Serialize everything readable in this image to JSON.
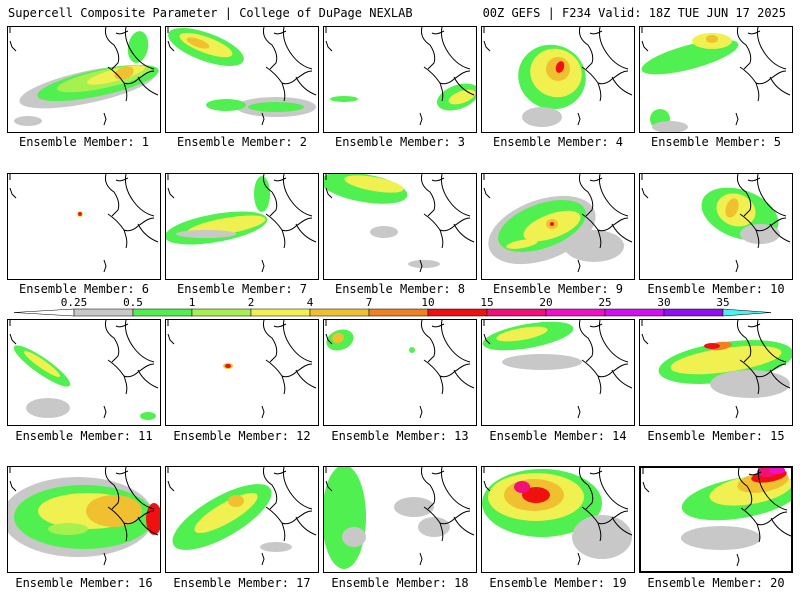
{
  "header": {
    "left": "Supercell Composite Parameter | College of DuPage NEXLAB",
    "right": "00Z GEFS | F234 Valid: 18Z TUE JUN 17 2025"
  },
  "legend": {
    "levels": [
      "0.25",
      "0.5",
      "1",
      "2",
      "4",
      "7",
      "10",
      "15",
      "20",
      "25",
      "30",
      "35"
    ],
    "colors": [
      "#c8c8c8",
      "#50f050",
      "#a6f050",
      "#f0f050",
      "#f0c030",
      "#f08020",
      "#f01010",
      "#f01078",
      "#f010c8",
      "#d010f0",
      "#9010f0",
      "#b070e8",
      "#50f0f0"
    ]
  },
  "members": [
    {
      "label": "Ensemble Member: 1"
    },
    {
      "label": "Ensemble Member: 2"
    },
    {
      "label": "Ensemble Member: 3"
    },
    {
      "label": "Ensemble Member: 4"
    },
    {
      "label": "Ensemble Member: 5"
    },
    {
      "label": "Ensemble Member: 6"
    },
    {
      "label": "Ensemble Member: 7"
    },
    {
      "label": "Ensemble Member: 8"
    },
    {
      "label": "Ensemble Member: 9"
    },
    {
      "label": "Ensemble Member: 10"
    },
    {
      "label": "Ensemble Member: 11"
    },
    {
      "label": "Ensemble Member: 12"
    },
    {
      "label": "Ensemble Member: 13"
    },
    {
      "label": "Ensemble Member: 14"
    },
    {
      "label": "Ensemble Member: 15"
    },
    {
      "label": "Ensemble Member: 16"
    },
    {
      "label": "Ensemble Member: 17"
    },
    {
      "label": "Ensemble Member: 18"
    },
    {
      "label": "Ensemble Member: 19"
    },
    {
      "label": "Ensemble Member: 20"
    }
  ]
}
